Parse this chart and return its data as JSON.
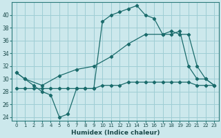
{
  "xlabel": "Humidex (Indice chaleur)",
  "background_color": "#cce8ec",
  "grid_color": "#9ecdd4",
  "line_color": "#1a6b6b",
  "xlim": [
    -0.5,
    23.5
  ],
  "ylim": [
    23.5,
    42
  ],
  "yticks": [
    24,
    26,
    28,
    30,
    32,
    34,
    36,
    38,
    40
  ],
  "xticks": [
    0,
    1,
    2,
    3,
    4,
    5,
    6,
    7,
    8,
    9,
    10,
    11,
    12,
    13,
    14,
    15,
    16,
    17,
    18,
    19,
    20,
    21,
    22,
    23
  ],
  "line1_x": [
    0,
    1,
    2,
    3,
    4,
    5,
    6,
    7,
    8,
    9,
    10,
    11,
    12,
    13,
    14,
    15,
    16,
    17,
    18,
    19,
    20,
    21,
    22,
    23
  ],
  "line1_y": [
    31,
    30,
    29,
    28,
    27.5,
    24,
    24.5,
    28.5,
    28.5,
    28.5,
    39,
    40,
    40.5,
    41,
    41.5,
    40,
    39.5,
    37,
    37,
    37.5,
    32,
    30,
    30,
    29
  ],
  "line2_x": [
    0,
    1,
    2,
    3,
    4,
    5,
    6,
    7,
    8,
    9,
    10,
    11,
    12,
    13,
    14,
    15,
    16,
    17,
    18,
    19,
    20,
    21,
    22,
    23
  ],
  "line2_y": [
    28.5,
    28.5,
    28.5,
    28.5,
    28.5,
    28.5,
    28.5,
    28.5,
    28.5,
    28.5,
    29,
    29,
    29,
    29.5,
    29.5,
    29.5,
    29.5,
    29.5,
    29.5,
    29.5,
    29.5,
    29,
    29,
    29
  ],
  "line3_x": [
    0,
    1,
    3,
    5,
    7,
    9,
    11,
    13,
    15,
    17,
    18,
    19,
    20,
    21,
    22,
    23
  ],
  "line3_y": [
    31,
    30,
    29,
    30.5,
    31.5,
    32,
    33.5,
    35.5,
    37,
    37,
    37.5,
    37,
    37,
    32,
    30,
    29
  ]
}
